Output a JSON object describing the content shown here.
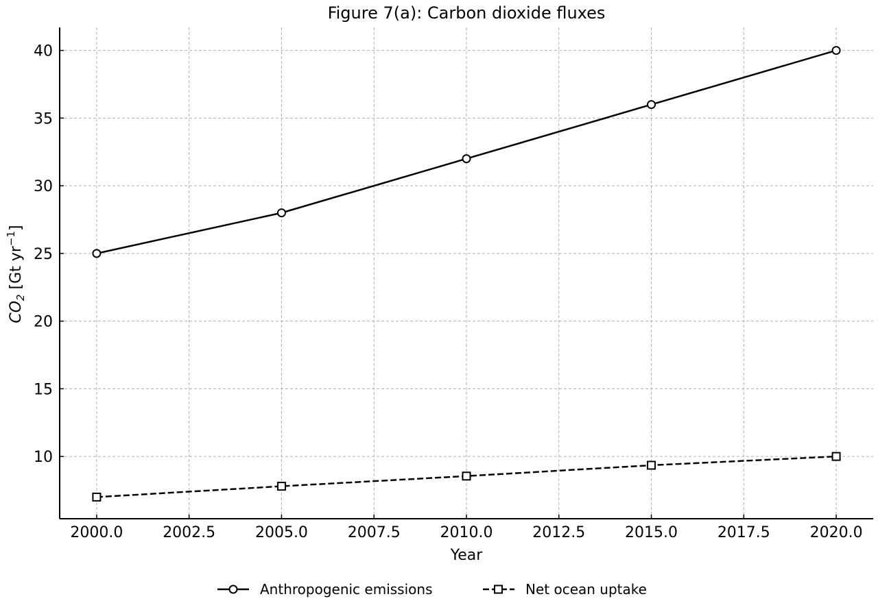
{
  "chart_data": {
    "type": "line",
    "title": "Figure 7(a): Carbon dioxide fluxes",
    "xlabel": "Year",
    "ylabel_main": "CO",
    "ylabel_sub": "2",
    "ylabel_units": " [Gt yr",
    "ylabel_sup": "−1",
    "ylabel_close": "]",
    "x": [
      2000,
      2005,
      2010,
      2015,
      2020
    ],
    "xlim": [
      1999,
      2021
    ],
    "ylim": [
      5.4,
      41.7
    ],
    "x_ticks": [
      2000.0,
      2002.5,
      2005.0,
      2007.5,
      2010.0,
      2012.5,
      2015.0,
      2017.5,
      2020.0
    ],
    "x_tick_labels": [
      "2000.0",
      "2002.5",
      "2005.0",
      "2007.5",
      "2010.0",
      "2012.5",
      "2015.0",
      "2017.5",
      "2020.0"
    ],
    "y_ticks": [
      10,
      15,
      20,
      25,
      30,
      35,
      40
    ],
    "y_tick_labels": [
      "10",
      "15",
      "20",
      "25",
      "30",
      "35",
      "40"
    ],
    "grid": true,
    "legend_position": "bottom-center",
    "series": [
      {
        "name": "Anthropogenic emissions",
        "values": [
          25,
          28,
          32,
          36,
          40
        ],
        "marker": "circle",
        "line_style": "solid",
        "color": "#000000"
      },
      {
        "name": "Net ocean uptake",
        "values": [
          7,
          7.8,
          8.55,
          9.35,
          10
        ],
        "marker": "square",
        "line_style": "dashed",
        "color": "#000000"
      }
    ]
  }
}
